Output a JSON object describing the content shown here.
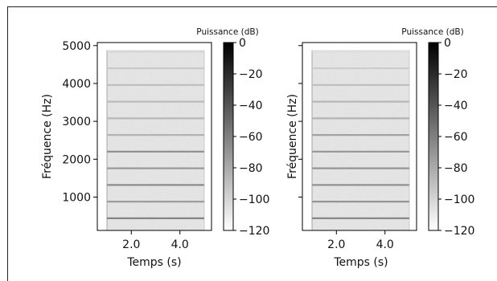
{
  "chart_data": [
    {
      "type": "heatmap",
      "xlabel": "Temps (s)",
      "ylabel": "Fréquence (Hz)",
      "xlim": [
        0.6,
        5.3
      ],
      "ylim": [
        120,
        5080
      ],
      "x_ticks": [
        2.0,
        4.0
      ],
      "x_tick_labels": [
        "2.0",
        "4.0"
      ],
      "y_ticks": [
        1000,
        2000,
        3000,
        4000,
        5000
      ],
      "y_tick_labels": [
        "1000",
        "2000",
        "3000",
        "4000",
        "5000"
      ],
      "time_range": [
        1.0,
        5.0
      ],
      "harmonics_hz": [
        440,
        880,
        1320,
        1760,
        2200,
        2640,
        3080,
        3520,
        3960,
        4400,
        4840
      ],
      "harmonics_db": [
        -62,
        -74,
        -66,
        -72,
        -68,
        -84,
        -86,
        -88,
        -90,
        -94,
        -100
      ],
      "noise_floor_db": -112,
      "colorbar": {
        "label": "Puissance (dB)",
        "range": [
          -120,
          0
        ],
        "ticks": [
          0,
          -20,
          -40,
          -60,
          -80,
          -100,
          -120
        ],
        "tick_labels": [
          "0",
          "−20",
          "−40",
          "−60",
          "−80",
          "−100",
          "−120"
        ],
        "colormap": "gray_r"
      }
    },
    {
      "type": "heatmap",
      "xlabel": "Temps (s)",
      "ylabel": "Fréquence (Hz)",
      "xlim": [
        0.6,
        5.3
      ],
      "ylim": [
        120,
        5080
      ],
      "x_ticks": [
        2.0,
        4.0
      ],
      "x_tick_labels": [
        "2.0",
        "4.0"
      ],
      "y_ticks": [
        1000,
        2000,
        3000,
        4000,
        5000
      ],
      "y_tick_labels": [
        "",
        "",
        "",
        "",
        ""
      ],
      "time_range": [
        1.0,
        5.0
      ],
      "harmonics_hz": [
        440,
        880,
        1320,
        1760,
        2200,
        2640,
        3080,
        3520,
        3960,
        4400,
        4840
      ],
      "harmonics_db": [
        -64,
        -70,
        -68,
        -70,
        -72,
        -76,
        -84,
        -86,
        -90,
        -96,
        -104
      ],
      "noise_floor_db": -112,
      "colorbar": {
        "label": "Puissance (dB)",
        "range": [
          -120,
          0
        ],
        "ticks": [
          0,
          -20,
          -40,
          -60,
          -80,
          -100,
          -120
        ],
        "tick_labels": [
          "0",
          "−20",
          "−40",
          "−60",
          "−80",
          "−100",
          "−120"
        ],
        "colormap": "gray_r"
      }
    }
  ]
}
